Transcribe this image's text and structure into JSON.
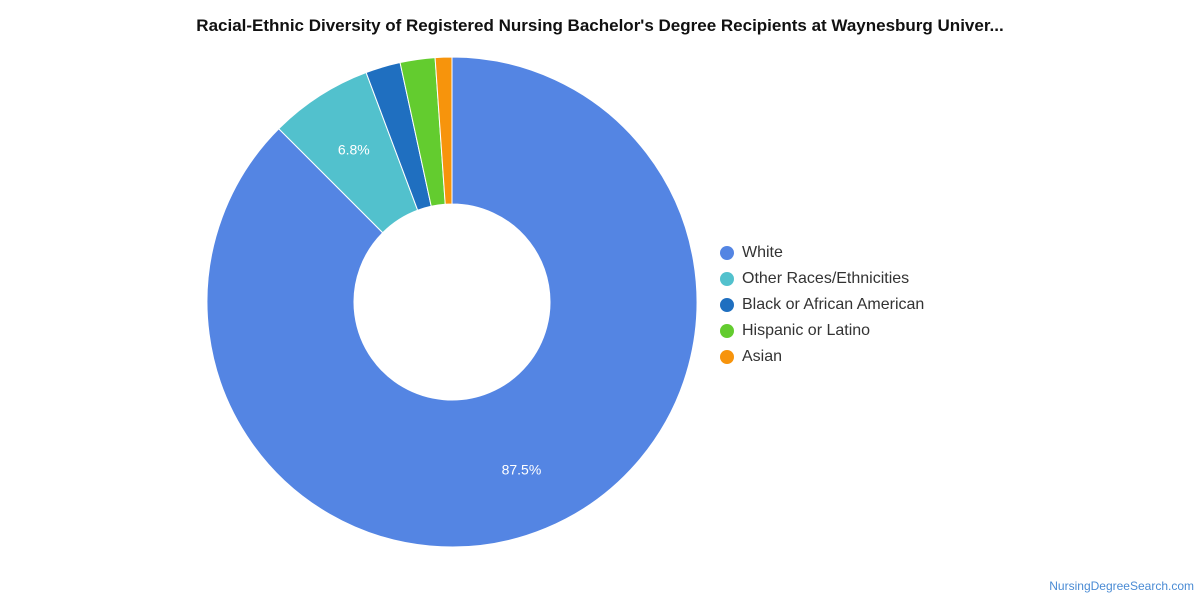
{
  "chart_data": {
    "type": "pie",
    "title": "Racial-Ethnic Diversity of Registered Nursing Bachelor's Degree Recipients at Waynesburg Univer...",
    "donut": true,
    "legend_position": "right",
    "slices": [
      {
        "label": "White",
        "value": 87.5,
        "color": "#5485e3",
        "data_label": "87.5%"
      },
      {
        "label": "Other Races/Ethnicities",
        "value": 6.8,
        "color": "#52c1cd",
        "data_label": "6.8%"
      },
      {
        "label": "Black or African American",
        "value": 2.3,
        "color": "#1f6fc0",
        "data_label": ""
      },
      {
        "label": "Hispanic or Latino",
        "value": 2.3,
        "color": "#63cc2f",
        "data_label": ""
      },
      {
        "label": "Asian",
        "value": 1.1,
        "color": "#f7940c",
        "data_label": ""
      }
    ]
  },
  "footer": {
    "source": "NursingDegreeSearch.com"
  }
}
